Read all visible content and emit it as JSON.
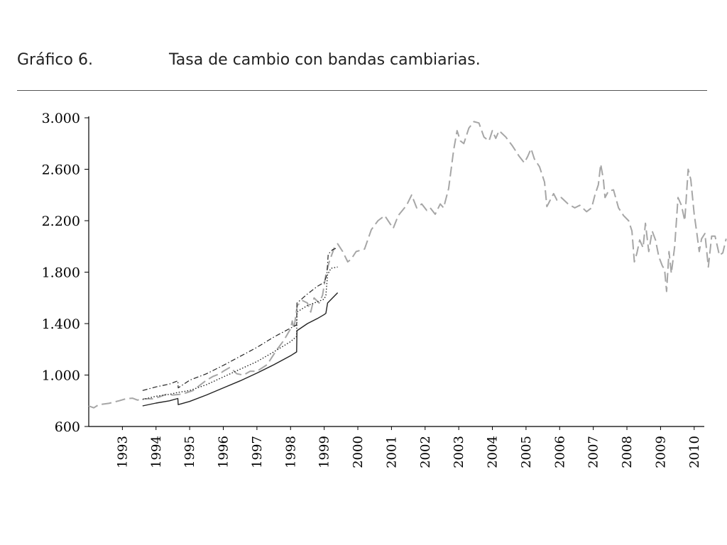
{
  "header": {
    "number": "Gráfico 6.",
    "title": "Tasa de cambio con bandas cambiarias."
  },
  "chart_data": {
    "type": "line",
    "title": "Tasa de cambio con bandas cambiarias.",
    "xlabel": "",
    "ylabel": "",
    "xlim": [
      1992.0,
      2010.3
    ],
    "ylim": [
      600,
      3000
    ],
    "y_ticks": [
      {
        "value": 600,
        "label": "600"
      },
      {
        "value": 1000,
        "label": "1.000"
      },
      {
        "value": 1400,
        "label": "1.400"
      },
      {
        "value": 1800,
        "label": "1.800"
      },
      {
        "value": 2200,
        "label": "2.200"
      },
      {
        "value": 2600,
        "label": "2.600"
      },
      {
        "value": 3000,
        "label": "3.000"
      }
    ],
    "x_ticks": [
      "1993",
      "1994",
      "1995",
      "1996",
      "1997",
      "1998",
      "1999",
      "2000",
      "2001",
      "2002",
      "2003",
      "2004",
      "2005",
      "2006",
      "2007",
      "2008",
      "2009",
      "2010"
    ],
    "grid": false,
    "colors": {
      "market": "#a6a6a6",
      "bands": "#222222"
    },
    "series": [
      {
        "style": "gray-dashed",
        "points": [
          [
            1992.0,
            760
          ],
          [
            1992.15,
            745
          ],
          [
            1992.3,
            770
          ],
          [
            1992.6,
            780
          ],
          [
            1992.9,
            800
          ],
          [
            1993.1,
            815
          ],
          [
            1993.3,
            820
          ],
          [
            1993.45,
            805
          ],
          [
            1993.6,
            815
          ],
          [
            1993.9,
            815
          ],
          [
            1994.1,
            830
          ],
          [
            1994.3,
            850
          ],
          [
            1994.5,
            845
          ],
          [
            1994.7,
            850
          ],
          [
            1994.9,
            862
          ],
          [
            1995.1,
            880
          ],
          [
            1995.3,
            920
          ],
          [
            1995.5,
            960
          ],
          [
            1995.7,
            990
          ],
          [
            1995.9,
            1010
          ],
          [
            1996.0,
            1030
          ],
          [
            1996.2,
            1060
          ],
          [
            1996.4,
            1010
          ],
          [
            1996.6,
            1000
          ],
          [
            1996.8,
            1030
          ],
          [
            1997.0,
            1030
          ],
          [
            1997.3,
            1080
          ],
          [
            1997.6,
            1200
          ],
          [
            1997.8,
            1270
          ],
          [
            1998.0,
            1360
          ],
          [
            1998.05,
            1420
          ],
          [
            1998.1,
            1360
          ],
          [
            1998.2,
            1540
          ],
          [
            1998.35,
            1580
          ],
          [
            1998.5,
            1560
          ],
          [
            1998.6,
            1490
          ],
          [
            1998.7,
            1600
          ],
          [
            1998.85,
            1560
          ],
          [
            1998.95,
            1620
          ],
          [
            1999.05,
            1780
          ],
          [
            1999.15,
            1880
          ],
          [
            1999.3,
            1990
          ],
          [
            1999.4,
            2020
          ],
          [
            1999.55,
            1960
          ],
          [
            1999.7,
            1880
          ],
          [
            1999.8,
            1900
          ],
          [
            1999.95,
            1960
          ],
          [
            2000.2,
            1980
          ],
          [
            2000.4,
            2130
          ],
          [
            2000.6,
            2200
          ],
          [
            2000.8,
            2240
          ],
          [
            2000.95,
            2180
          ],
          [
            2001.05,
            2140
          ],
          [
            2001.2,
            2240
          ],
          [
            2001.45,
            2320
          ],
          [
            2001.6,
            2400
          ],
          [
            2001.75,
            2300
          ],
          [
            2001.9,
            2330
          ],
          [
            2002.05,
            2280
          ],
          [
            2002.15,
            2300
          ],
          [
            2002.3,
            2250
          ],
          [
            2002.45,
            2330
          ],
          [
            2002.55,
            2300
          ],
          [
            2002.7,
            2450
          ],
          [
            2002.85,
            2750
          ],
          [
            2002.95,
            2900
          ],
          [
            2003.05,
            2820
          ],
          [
            2003.15,
            2800
          ],
          [
            2003.3,
            2920
          ],
          [
            2003.45,
            2970
          ],
          [
            2003.6,
            2960
          ],
          [
            2003.75,
            2850
          ],
          [
            2003.9,
            2820
          ],
          [
            2004.0,
            2900
          ],
          [
            2004.1,
            2840
          ],
          [
            2004.2,
            2900
          ],
          [
            2004.4,
            2850
          ],
          [
            2004.6,
            2780
          ],
          [
            2004.8,
            2700
          ],
          [
            2004.95,
            2650
          ],
          [
            2005.05,
            2700
          ],
          [
            2005.15,
            2760
          ],
          [
            2005.25,
            2680
          ],
          [
            2005.4,
            2620
          ],
          [
            2005.55,
            2500
          ],
          [
            2005.62,
            2310
          ],
          [
            2005.72,
            2360
          ],
          [
            2005.82,
            2410
          ],
          [
            2005.92,
            2360
          ],
          [
            2006.05,
            2380
          ],
          [
            2006.25,
            2330
          ],
          [
            2006.45,
            2300
          ],
          [
            2006.6,
            2320
          ],
          [
            2006.8,
            2270
          ],
          [
            2006.95,
            2300
          ],
          [
            2007.05,
            2400
          ],
          [
            2007.15,
            2480
          ],
          [
            2007.22,
            2640
          ],
          [
            2007.3,
            2520
          ],
          [
            2007.35,
            2380
          ],
          [
            2007.45,
            2430
          ],
          [
            2007.6,
            2440
          ],
          [
            2007.75,
            2300
          ],
          [
            2007.9,
            2240
          ],
          [
            2008.05,
            2200
          ],
          [
            2008.15,
            2120
          ],
          [
            2008.22,
            1880
          ],
          [
            2008.3,
            1950
          ],
          [
            2008.38,
            2050
          ],
          [
            2008.48,
            1990
          ],
          [
            2008.55,
            2180
          ],
          [
            2008.65,
            1960
          ],
          [
            2008.75,
            2120
          ],
          [
            2008.85,
            2050
          ],
          [
            2008.95,
            1920
          ],
          [
            2009.05,
            1850
          ],
          [
            2009.12,
            1820
          ],
          [
            2009.18,
            1650
          ],
          [
            2009.25,
            1960
          ],
          [
            2009.32,
            1790
          ],
          [
            2009.42,
            2000
          ],
          [
            2009.52,
            2380
          ],
          [
            2009.62,
            2320
          ],
          [
            2009.72,
            2200
          ],
          [
            2009.82,
            2600
          ],
          [
            2009.9,
            2520
          ],
          [
            2010.0,
            2250
          ],
          [
            2010.08,
            2100
          ],
          [
            2010.15,
            1960
          ],
          [
            2010.22,
            2060
          ],
          [
            2010.32,
            2100
          ],
          [
            2010.42,
            1840
          ],
          [
            2010.52,
            2080
          ],
          [
            2010.62,
            2080
          ],
          [
            2010.75,
            1930
          ],
          [
            2010.85,
            1950
          ],
          [
            2010.95,
            2060
          ]
        ]
      },
      {
        "style": "dash-dot",
        "points": [
          [
            1993.6,
            880
          ],
          [
            1994.0,
            908
          ],
          [
            1994.4,
            930
          ],
          [
            1994.65,
            955
          ],
          [
            1994.66,
            900
          ],
          [
            1995.0,
            960
          ],
          [
            1995.5,
            1010
          ],
          [
            1996.0,
            1075
          ],
          [
            1996.5,
            1145
          ],
          [
            1997.0,
            1215
          ],
          [
            1997.5,
            1295
          ],
          [
            1998.0,
            1365
          ],
          [
            1998.18,
            1390
          ],
          [
            1998.19,
            1560
          ],
          [
            1998.5,
            1630
          ],
          [
            1998.8,
            1690
          ],
          [
            1999.0,
            1720
          ],
          [
            1999.08,
            1780
          ],
          [
            1999.12,
            1940
          ],
          [
            1999.25,
            1975
          ],
          [
            1999.4,
            1990
          ]
        ]
      },
      {
        "style": "dotted",
        "points": [
          [
            1993.6,
            810
          ],
          [
            1994.0,
            835
          ],
          [
            1994.4,
            850
          ],
          [
            1994.65,
            865
          ],
          [
            1995.0,
            880
          ],
          [
            1995.5,
            925
          ],
          [
            1996.0,
            985
          ],
          [
            1996.5,
            1045
          ],
          [
            1997.0,
            1105
          ],
          [
            1997.5,
            1180
          ],
          [
            1998.0,
            1260
          ],
          [
            1998.18,
            1300
          ],
          [
            1998.19,
            1490
          ],
          [
            1998.5,
            1540
          ],
          [
            1998.8,
            1570
          ],
          [
            1999.0,
            1590
          ],
          [
            1999.05,
            1620
          ],
          [
            1999.1,
            1780
          ],
          [
            1999.2,
            1830
          ],
          [
            1999.4,
            1840
          ]
        ]
      },
      {
        "style": "solid",
        "points": [
          [
            1993.6,
            760
          ],
          [
            1994.0,
            782
          ],
          [
            1994.4,
            800
          ],
          [
            1994.65,
            818
          ],
          [
            1994.66,
            770
          ],
          [
            1995.0,
            795
          ],
          [
            1995.5,
            845
          ],
          [
            1996.0,
            900
          ],
          [
            1996.5,
            955
          ],
          [
            1997.0,
            1015
          ],
          [
            1997.5,
            1080
          ],
          [
            1998.0,
            1150
          ],
          [
            1998.18,
            1180
          ],
          [
            1998.19,
            1345
          ],
          [
            1998.5,
            1400
          ],
          [
            1998.8,
            1440
          ],
          [
            1999.0,
            1470
          ],
          [
            1999.05,
            1480
          ],
          [
            1999.1,
            1560
          ],
          [
            1999.25,
            1600
          ],
          [
            1999.4,
            1640
          ]
        ]
      }
    ]
  }
}
